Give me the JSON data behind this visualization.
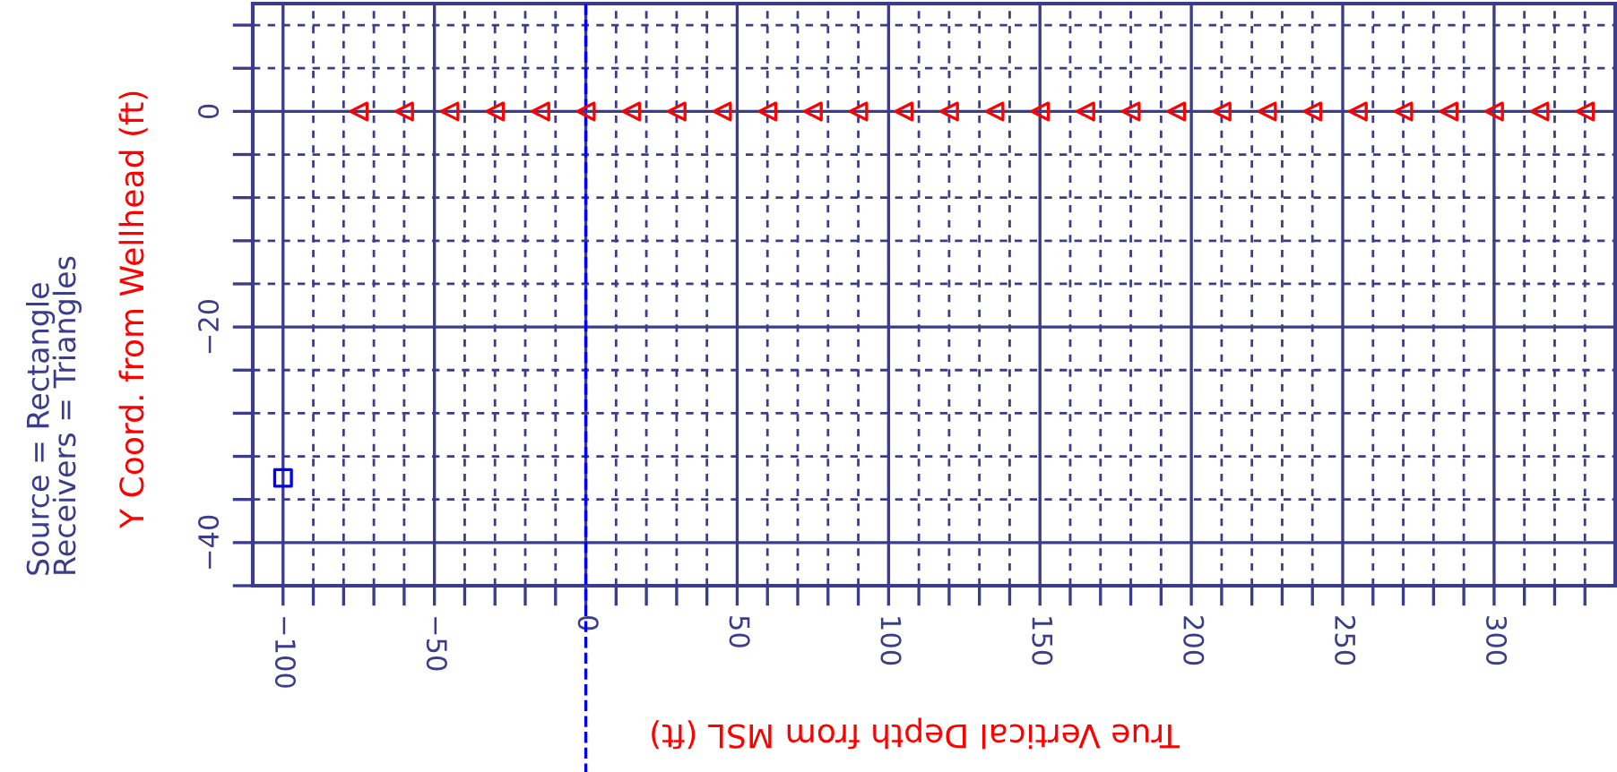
{
  "chart_data": {
    "type": "scatter",
    "xlabel": "True Vertical Depth from MSL (ft)",
    "ylabel": "Y Coord. from Wellhead (ft)",
    "annotations": [
      "Source = Rectangle",
      "Receivers = Triangles"
    ],
    "series": [
      {
        "marker": "square",
        "color": "#0000ff",
        "x": [
          -100
        ],
        "values": [
          -34
        ]
      },
      {
        "marker": "triangle",
        "color": "#ff0000",
        "x": [
          -75,
          -60,
          -45,
          -30,
          -15,
          0,
          15,
          30,
          45,
          60,
          75,
          90,
          105,
          120,
          135,
          150,
          165,
          180,
          195,
          210,
          225,
          240,
          255,
          270,
          285,
          300,
          315,
          330
        ],
        "values": [
          0,
          0,
          0,
          0,
          0,
          0,
          0,
          0,
          0,
          0,
          0,
          0,
          0,
          0,
          0,
          0,
          0,
          0,
          0,
          0,
          0,
          0,
          0,
          0,
          0,
          0,
          0,
          0
        ]
      }
    ],
    "xlim": [
      -110,
      340
    ],
    "ylim": [
      -44,
      10
    ],
    "xticks": [
      -100,
      {
        "value": -90,
        "label": null
      },
      {
        "value": -80,
        "label": null
      },
      {
        "value": -70,
        "label": null
      },
      {
        "value": -60,
        "label": null
      },
      -50,
      {
        "value": -40,
        "label": null
      },
      {
        "value": -30,
        "label": null
      },
      {
        "value": -20,
        "label": null
      },
      {
        "value": -10,
        "label": null
      },
      0,
      {
        "value": 10,
        "label": null
      },
      {
        "value": 20,
        "label": null
      },
      {
        "value": 30,
        "label": null
      },
      {
        "value": 40,
        "label": null
      },
      50,
      {
        "value": 60,
        "label": null
      },
      {
        "value": 70,
        "label": null
      },
      {
        "value": 80,
        "label": null
      },
      {
        "value": 90,
        "label": null
      },
      100,
      {
        "value": 110,
        "label": null
      },
      {
        "value": 120,
        "label": null
      },
      {
        "value": 130,
        "label": null
      },
      {
        "value": 140,
        "label": null
      },
      150,
      {
        "value": 160,
        "label": null
      },
      {
        "value": 170,
        "label": null
      },
      {
        "value": 180,
        "label": null
      },
      {
        "value": 190,
        "label": null
      },
      200,
      {
        "value": 210,
        "label": null
      },
      {
        "value": 220,
        "label": null
      },
      {
        "value": 230,
        "label": null
      },
      {
        "value": 240,
        "label": null
      },
      250,
      {
        "value": 260,
        "label": null
      },
      {
        "value": 270,
        "label": null
      },
      {
        "value": 280,
        "label": null
      },
      {
        "value": 290,
        "label": null
      },
      300,
      {
        "value": 310,
        "label": null
      },
      {
        "value": 320,
        "label": null
      },
      {
        "value": 330,
        "label": null
      }
    ],
    "yticks": [
      {
        "value": 8,
        "label": null
      },
      {
        "value": 4,
        "label": null
      },
      0,
      {
        "value": -4,
        "label": null
      },
      {
        "value": -8,
        "label": null
      },
      {
        "value": -12,
        "label": null
      },
      {
        "value": -16,
        "label": null
      },
      -20,
      {
        "value": -24,
        "label": null
      },
      {
        "value": -28,
        "label": null
      },
      {
        "value": -32,
        "label": null
      },
      {
        "value": -36,
        "label": null
      },
      -40,
      {
        "value": -44,
        "label": null
      }
    ],
    "ref_lines": [
      {
        "axis": "x",
        "value": 0,
        "color": "#0000ff",
        "line_style": "dashed"
      }
    ],
    "grid": true
  }
}
